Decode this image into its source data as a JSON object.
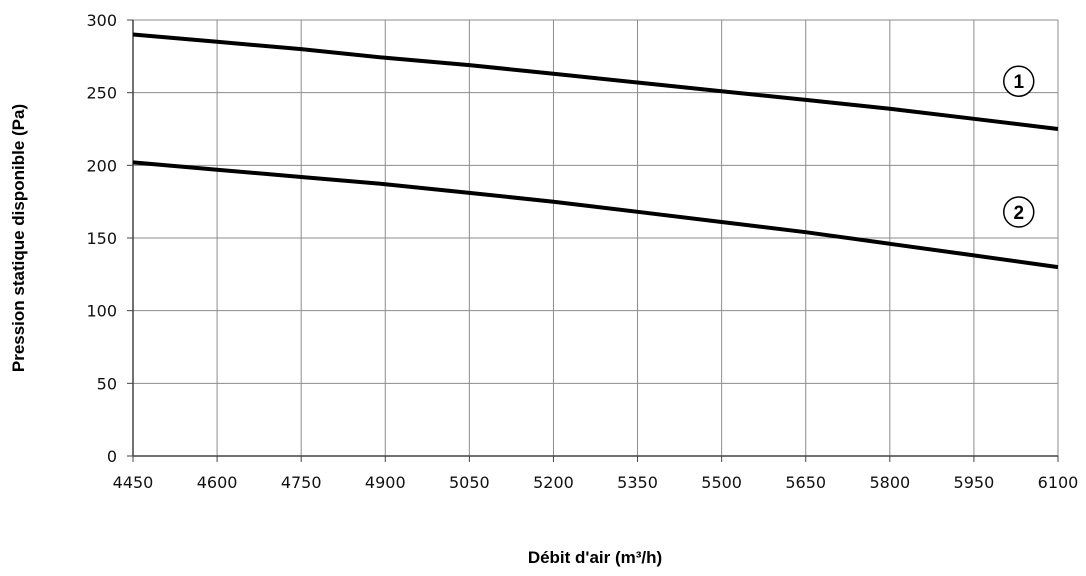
{
  "chart_data": {
    "type": "line",
    "title": "",
    "xlabel": "Débit d'air (m³/h)",
    "ylabel": "Pression statique disponible (Pa)",
    "xlim": [
      4450,
      6100
    ],
    "ylim": [
      0,
      300
    ],
    "x_ticks": [
      4450,
      4600,
      4750,
      4900,
      5050,
      5200,
      5350,
      5500,
      5650,
      5800,
      5950,
      6100
    ],
    "y_ticks": [
      0,
      50,
      100,
      150,
      200,
      250,
      300
    ],
    "grid": true,
    "legend": "none",
    "line_color": "#000000",
    "grid_color": "#8c8c8c",
    "series": [
      {
        "label": "1",
        "x": [
          4450,
          4600,
          4750,
          4900,
          5050,
          5200,
          5350,
          5500,
          5650,
          5800,
          5950,
          6100
        ],
        "y": [
          290,
          285,
          280,
          274,
          269,
          263,
          257,
          251,
          245,
          239,
          232,
          225
        ],
        "label_at": [
          6030,
          251
        ]
      },
      {
        "label": "2",
        "x": [
          4450,
          4600,
          4750,
          4900,
          5050,
          5200,
          5350,
          5500,
          5650,
          5800,
          5950,
          6100
        ],
        "y": [
          202,
          197,
          192,
          187,
          181,
          175,
          168,
          161,
          154,
          146,
          138,
          130
        ],
        "label_at": [
          6030,
          161
        ]
      }
    ]
  }
}
